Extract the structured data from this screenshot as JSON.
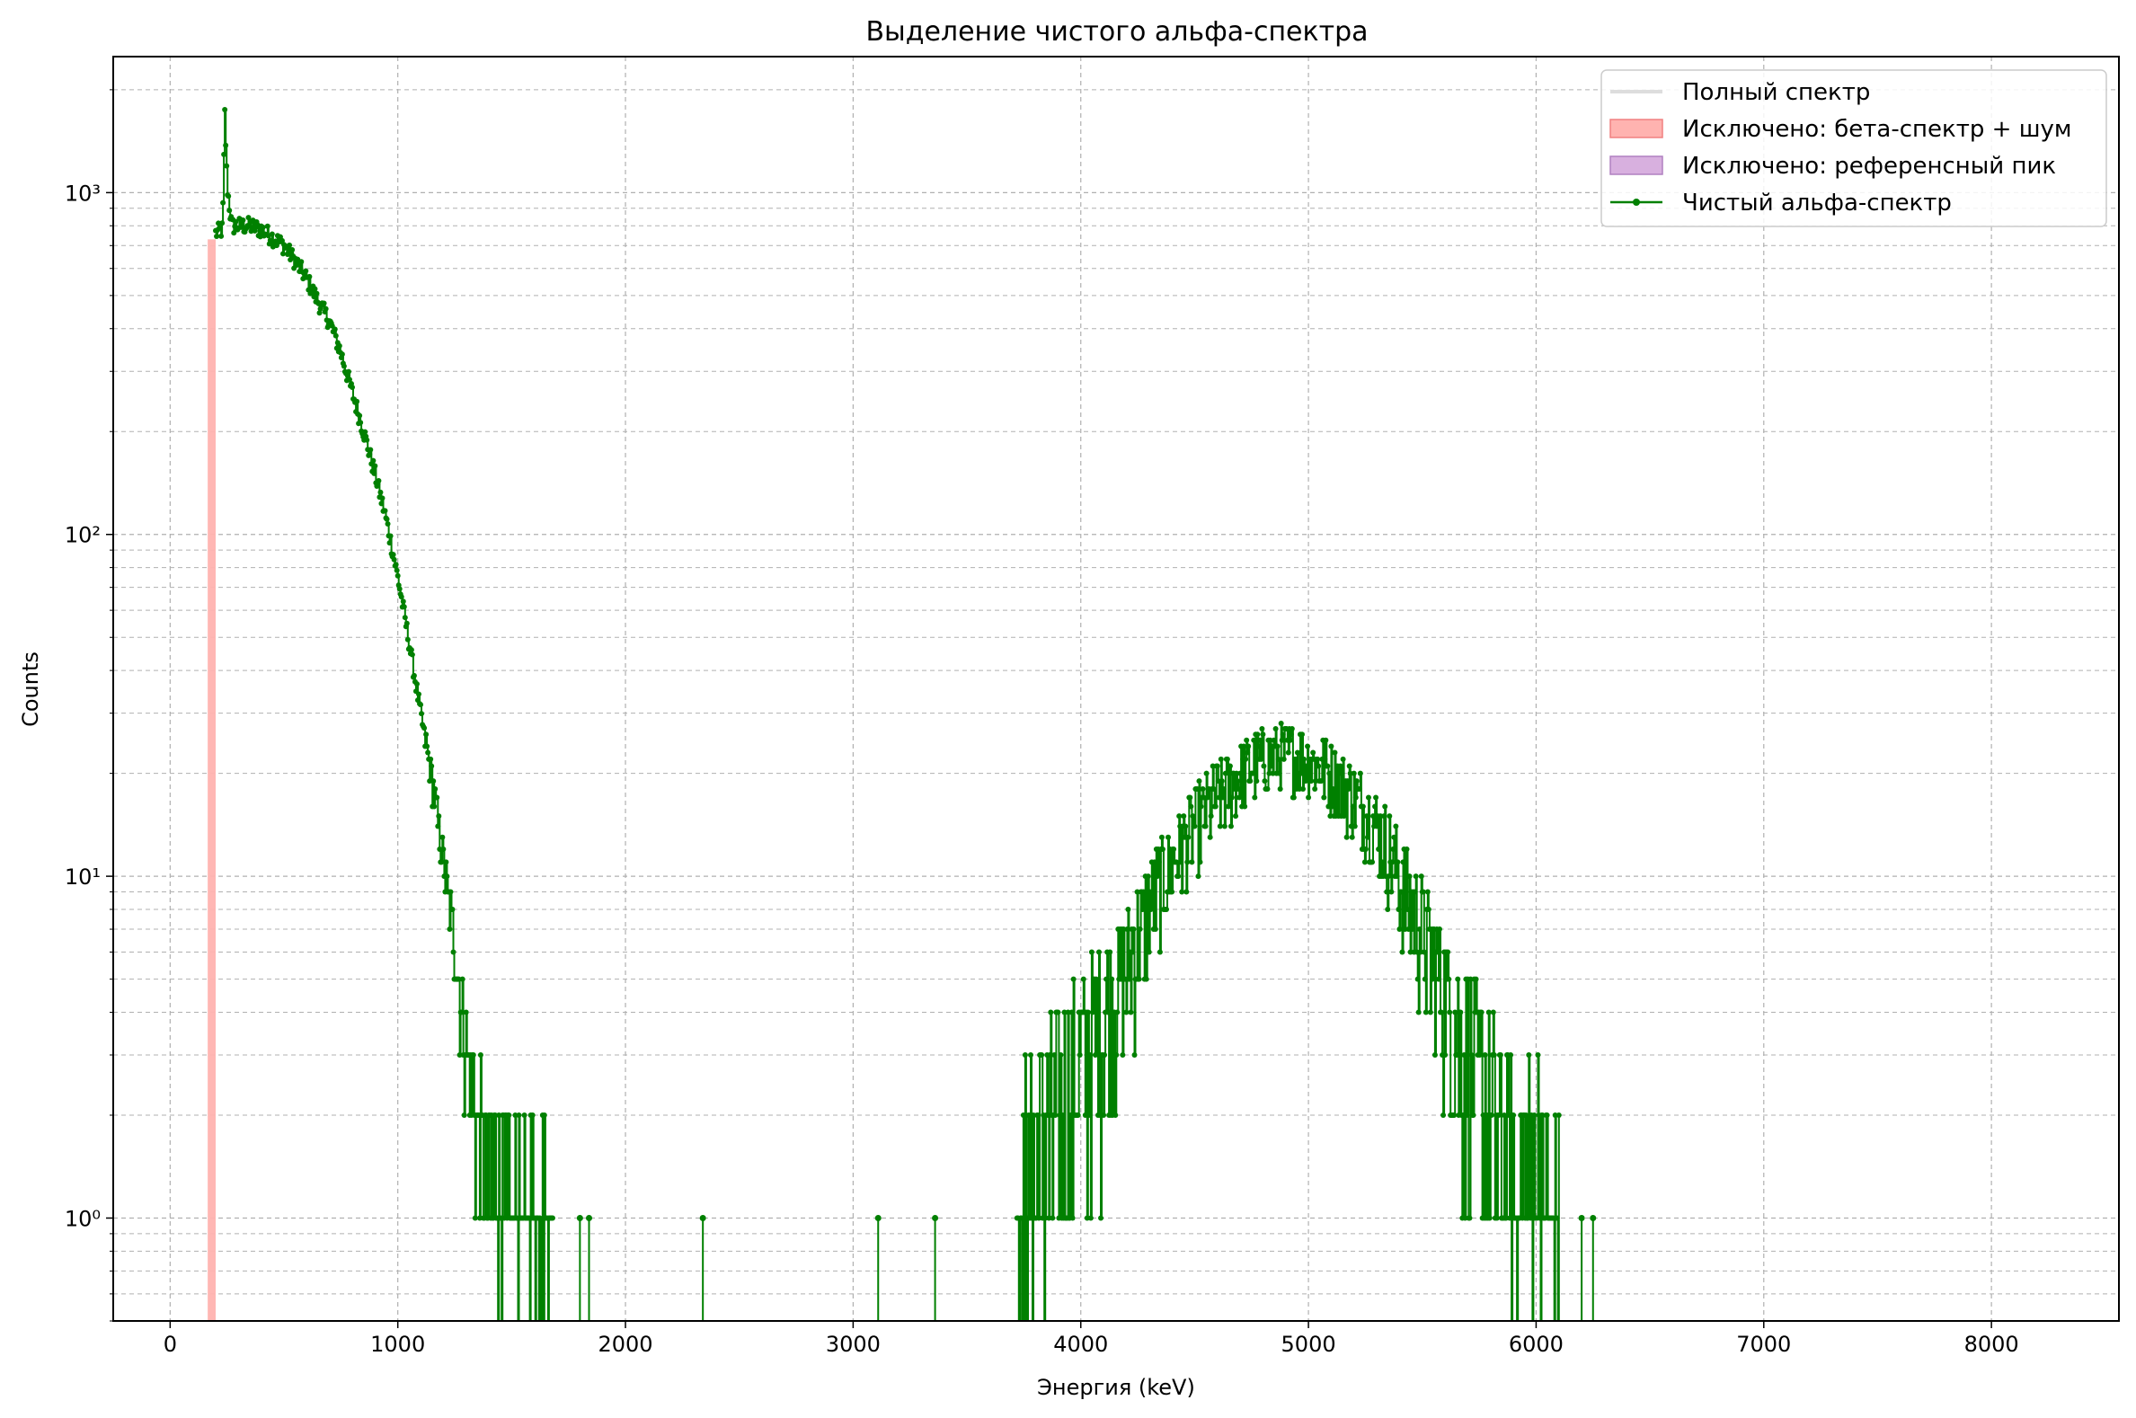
{
  "chart_data": {
    "type": "line",
    "title": "Выделение чистого альфа-спектра",
    "xlabel": "Энергия (keV)",
    "ylabel": "Counts",
    "xlim": [
      -250,
      8560
    ],
    "ylim": [
      0.5,
      2500
    ],
    "yscale": "log",
    "grid": true,
    "legend_placement": "top-right",
    "x_ticks": [
      0,
      1000,
      2000,
      3000,
      4000,
      5000,
      6000,
      7000,
      8000
    ],
    "x_tick_labels": [
      "0",
      "1000",
      "2000",
      "3000",
      "4000",
      "5000",
      "6000",
      "7000",
      "8000"
    ],
    "y_ticks": [
      1,
      10,
      100,
      1000
    ],
    "y_tick_labels": [
      "10⁰",
      "10¹",
      "10²",
      "10³"
    ],
    "legend": [
      {
        "label": "Полный спектр",
        "kind": "line",
        "color": "#dddddd"
      },
      {
        "label": "Исключено: бета-спектр + шум",
        "kind": "patch",
        "color": "#ffb3b0",
        "edge": "#f08080"
      },
      {
        "label": "Исключено: референсный пик",
        "kind": "patch",
        "color": "#d8b0df",
        "edge": "#b080c0"
      },
      {
        "label": "Чистый альфа-спектр",
        "kind": "marker-line",
        "color": "#008000"
      }
    ],
    "series": [
      {
        "name": "Исключено: бета-спектр + шум",
        "kind": "band",
        "color": "#ffb3b0",
        "x_range": [
          165,
          200
        ],
        "y_top": 730
      },
      {
        "name": "Чистый альфа-спектр",
        "kind": "noisy-envelope",
        "color": "#008000",
        "points_low_energy": [
          [
            200,
            760
          ],
          [
            230,
            780
          ],
          [
            240,
            1700
          ],
          [
            250,
            1050
          ],
          [
            270,
            800
          ],
          [
            300,
            800
          ],
          [
            350,
            800
          ],
          [
            400,
            780
          ],
          [
            450,
            740
          ],
          [
            500,
            700
          ],
          [
            550,
            630
          ],
          [
            600,
            560
          ],
          [
            650,
            480
          ],
          [
            700,
            420
          ],
          [
            750,
            340
          ],
          [
            800,
            260
          ],
          [
            850,
            200
          ],
          [
            900,
            150
          ],
          [
            950,
            110
          ],
          [
            1000,
            75
          ],
          [
            1050,
            48
          ],
          [
            1100,
            30
          ],
          [
            1150,
            19
          ],
          [
            1200,
            11
          ],
          [
            1250,
            6
          ],
          [
            1300,
            3
          ],
          [
            1350,
            2
          ],
          [
            1400,
            1.4
          ],
          [
            1500,
            1
          ],
          [
            1600,
            1
          ],
          [
            1680,
            1
          ]
        ],
        "points_alpha_peak": [
          [
            3720,
            1
          ],
          [
            3800,
            1.5
          ],
          [
            3900,
            2
          ],
          [
            4000,
            3
          ],
          [
            4100,
            4
          ],
          [
            4200,
            5.5
          ],
          [
            4300,
            8
          ],
          [
            4400,
            11
          ],
          [
            4500,
            14
          ],
          [
            4600,
            17
          ],
          [
            4700,
            20
          ],
          [
            4800,
            22
          ],
          [
            4900,
            23
          ],
          [
            5000,
            22
          ],
          [
            5100,
            20
          ],
          [
            5200,
            17
          ],
          [
            5300,
            14
          ],
          [
            5400,
            10
          ],
          [
            5500,
            7
          ],
          [
            5600,
            4.5
          ],
          [
            5700,
            3
          ],
          [
            5800,
            2
          ],
          [
            5900,
            1.5
          ],
          [
            6000,
            1.2
          ],
          [
            6100,
            1
          ]
        ],
        "isolated_points": [
          [
            1800,
            1
          ],
          [
            1840,
            1
          ],
          [
            2340,
            1
          ],
          [
            3110,
            1
          ],
          [
            3360,
            1
          ],
          [
            6200,
            1
          ],
          [
            6250,
            1
          ]
        ],
        "peak_max": 31
      }
    ]
  }
}
